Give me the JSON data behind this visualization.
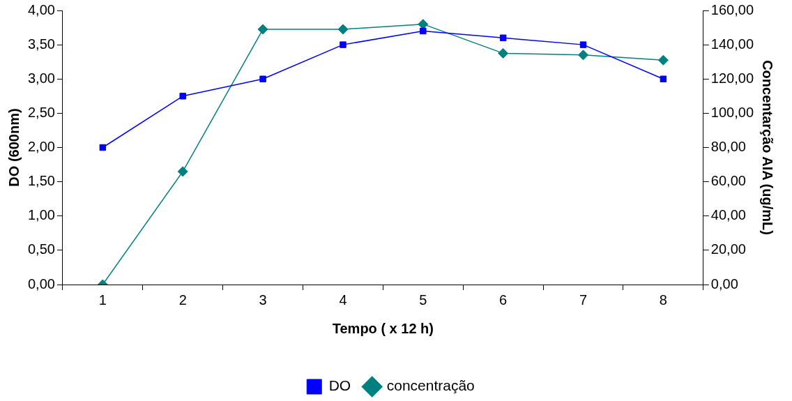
{
  "chart_data": {
    "type": "line",
    "xlabel": "Tempo ( x 12 h)",
    "ylabel": "DO (600nm)",
    "y2label": "Concentarção AIA (ug/mL)",
    "categories": [
      "1",
      "2",
      "3",
      "4",
      "5",
      "6",
      "7",
      "8"
    ],
    "series": [
      {
        "name": "DO",
        "color": "#0000ff",
        "marker": "square",
        "values": [
          2.0,
          2.75,
          3.0,
          3.5,
          3.7,
          3.6,
          3.5,
          3.0
        ]
      },
      {
        "name": "concentração",
        "color": "#008080",
        "marker": "diamond",
        "axis": "y2",
        "values": [
          0,
          66,
          149,
          149,
          152,
          135,
          134,
          131
        ]
      }
    ],
    "ylim": [
      0,
      4
    ],
    "yticks": [
      {
        "value": 0,
        "label": "0,00"
      },
      {
        "value": 0.5,
        "label": "0,50"
      },
      {
        "value": 1,
        "label": "1,00"
      },
      {
        "value": 1.5,
        "label": "1,50"
      },
      {
        "value": 2,
        "label": "2,00"
      },
      {
        "value": 2.5,
        "label": "2,50"
      },
      {
        "value": 3,
        "label": "3,00"
      },
      {
        "value": 3.5,
        "label": "3,50"
      },
      {
        "value": 4,
        "label": "4,00"
      }
    ],
    "y2lim": [
      0,
      160
    ],
    "y2ticks": [
      {
        "value": 0,
        "label": "0,00"
      },
      {
        "value": 20,
        "label": "20,00"
      },
      {
        "value": 40,
        "label": "40,00"
      },
      {
        "value": 60,
        "label": "60,00"
      },
      {
        "value": 80,
        "label": "80,00"
      },
      {
        "value": 100,
        "label": "100,00"
      },
      {
        "value": 120,
        "label": "120,00"
      },
      {
        "value": 140,
        "label": "140,00"
      },
      {
        "value": 160,
        "label": "160,00"
      }
    ],
    "grid": false,
    "legend": "bottom",
    "line_style": "solid"
  }
}
